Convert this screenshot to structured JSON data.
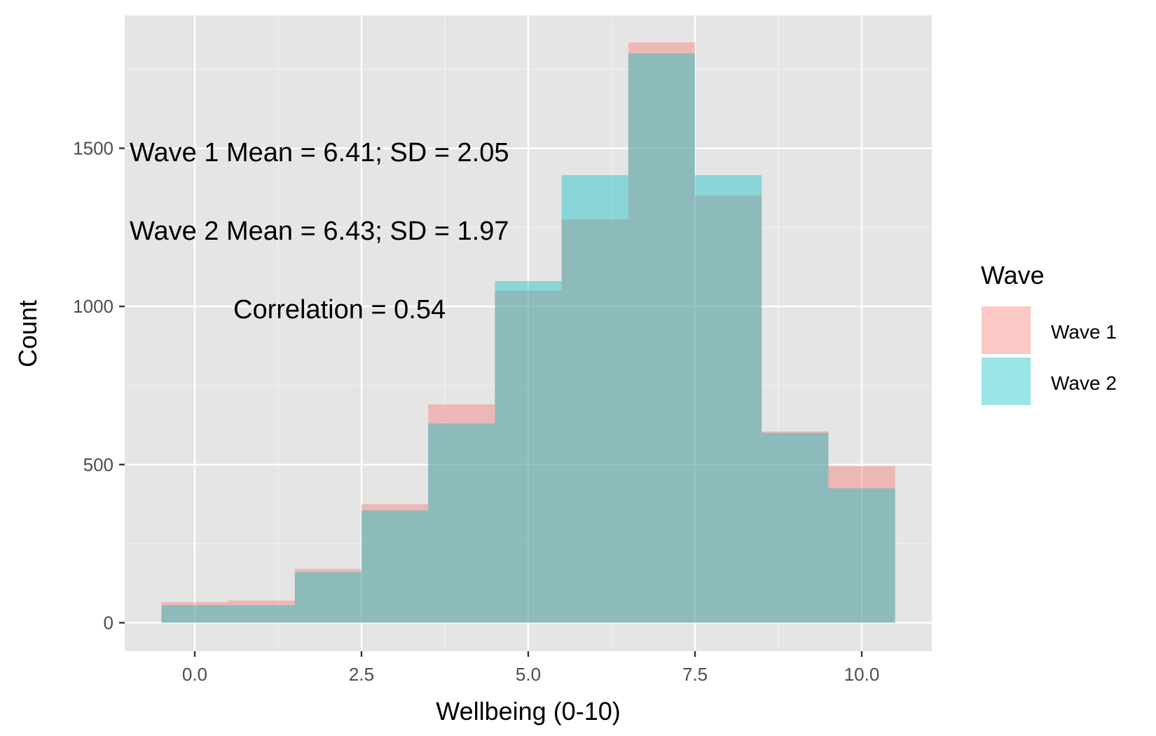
{
  "chart_data": {
    "type": "histogram",
    "xlabel": "Wellbeing (0-10)",
    "ylabel": "Count",
    "xlim": [
      -1.05,
      11.05
    ],
    "ylim": [
      -90,
      1920
    ],
    "x_ticks": [
      0,
      2.5,
      5,
      7.5,
      10
    ],
    "x_tick_labels": [
      "0.0",
      "2.5",
      "5.0",
      "7.5",
      "10.0"
    ],
    "x_minor": [
      1.25,
      3.75,
      6.25,
      8.75
    ],
    "y_ticks": [
      0,
      500,
      1000,
      1500
    ],
    "y_tick_labels": [
      "0",
      "500",
      "1000",
      "1500"
    ],
    "y_minor": [
      250,
      750,
      1250,
      1750
    ],
    "grid": true,
    "bin_edges": [
      -0.5,
      0.5,
      1.5,
      2.5,
      3.5,
      4.5,
      5.5,
      6.5,
      7.5,
      8.5,
      9.5,
      10.5
    ],
    "categories": [
      0,
      1,
      2,
      3,
      4,
      5,
      6,
      7,
      8,
      9,
      10
    ],
    "series": [
      {
        "name": "Wave 1",
        "color": "#F8766D",
        "values": [
          65,
          70,
          170,
          375,
          690,
          1050,
          1275,
          1835,
          1350,
          605,
          495
        ]
      },
      {
        "name": "Wave 2",
        "color": "#00BFC4",
        "values": [
          55,
          55,
          160,
          355,
          630,
          1080,
          1415,
          1800,
          1415,
          600,
          425
        ]
      }
    ],
    "annotations": [
      "Wave 1 Mean = 6.41; SD = 2.05",
      "Wave 2 Mean = 6.43; SD = 1.97",
      "Correlation = 0.54"
    ],
    "legend": {
      "title": "Wave",
      "position": "right"
    }
  }
}
